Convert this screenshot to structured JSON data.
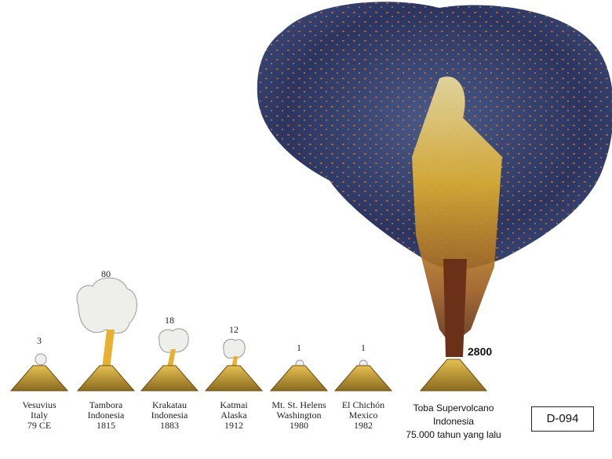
{
  "volcanoes": [
    {
      "name": "Vesuvius",
      "place": "Italy",
      "date": "79 CE",
      "value": "3"
    },
    {
      "name": "Tambora",
      "place": "Indonesia",
      "date": "1815",
      "value": "80"
    },
    {
      "name": "Krakatau",
      "place": "Indonesia",
      "date": "1883",
      "value": "18"
    },
    {
      "name": "Katmai",
      "place": "Alaska",
      "date": "1912",
      "value": "12"
    },
    {
      "name": "Mt. St. Helens",
      "place": "Washington",
      "date": "1980",
      "value": "1"
    },
    {
      "name": "El Chichón",
      "place": "Mexico",
      "date": "1982",
      "value": "1"
    }
  ],
  "toba": {
    "name": "Toba Supervolcano",
    "place": "Indonesia",
    "date": "75.000 tahun yang lalu",
    "value": "2800"
  },
  "code": "D-094",
  "colors": {
    "cone": "#c9a032",
    "ash": "#2b3560",
    "plume": "#e8c040"
  }
}
